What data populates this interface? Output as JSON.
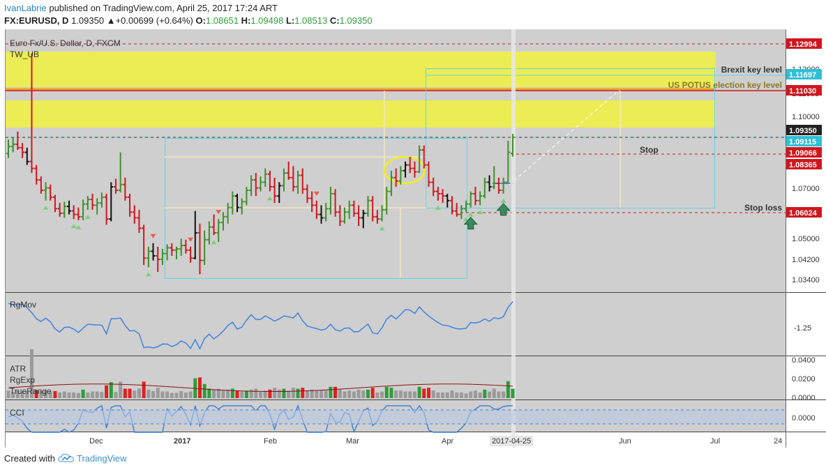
{
  "header": {
    "author": "IvanLabrie",
    "published": "published on TradingView.com, April 25, 2017 17:24 ART",
    "symbol_line_prefix": "FX:EURUSD, D",
    "last_price": "1.09350",
    "change_arrow": "▲",
    "change": "+0.00699 (+0.64%)",
    "o_label": "O:",
    "o_value": "1.08651",
    "h_label": "H:",
    "h_value": "1.09498",
    "l_label": "L:",
    "l_value": "1.08513",
    "c_label": "C:",
    "c_value": "1.09350"
  },
  "footer": {
    "created_with": "Created with",
    "brand": "TradingView",
    "logo_icon": "tradingview-cloud-icon"
  },
  "colors": {
    "panel_bg": "#cfcfcf",
    "bull": "#3f8f2c",
    "bear": "#d0161e",
    "neutral": "#111111",
    "zone_yellow": "#ecec54",
    "cyan": "#5fd6e8",
    "line_blue": "#3f83e0",
    "red_level": "#d0161e",
    "dark_price_tag": "#222222",
    "cyan_price_tag": "#2fbfd6"
  },
  "chart_data": {
    "type": "candlestick",
    "symbol_title": "Euro Fx/U.S. Dollar, D, FXCM",
    "indicator_label": "TW_UB",
    "price_axis_ticks": [
      "1.12000",
      "1.11000",
      "1.10000",
      "1.07000",
      "1.05000",
      "1.04200",
      "1.03400"
    ],
    "price_tags": [
      {
        "value": "1.12994",
        "style": "red"
      },
      {
        "value": "1.11697",
        "style": "cyan"
      },
      {
        "value": "1.11030",
        "style": "red"
      },
      {
        "value": "1.09350",
        "style": "dark"
      },
      {
        "value": "1.09115",
        "style": "cyan"
      },
      {
        "value": "1.09066",
        "style": "red"
      },
      {
        "value": "1.08365",
        "style": "red"
      },
      {
        "value": "1.06024",
        "style": "red"
      }
    ],
    "annotations": {
      "brexit": "Brexit key level",
      "potus": "US POTUS election key level",
      "stop": "Stop",
      "stop_loss": "Stop loss"
    },
    "time_axis": [
      "Dec",
      "2017",
      "Feb",
      "Mar",
      "Apr",
      "2017-04-25",
      "Jun",
      "Jul",
      "24"
    ],
    "ohlc": [
      [
        1.0865,
        1.0925,
        1.0845,
        1.0895
      ],
      [
        1.0895,
        1.0935,
        1.087,
        1.0905
      ],
      [
        1.0905,
        1.096,
        1.088,
        1.089
      ],
      [
        1.089,
        1.091,
        1.0845,
        1.087
      ],
      [
        1.087,
        1.089,
        1.0815,
        1.083
      ],
      [
        1.083,
        1.13,
        1.078,
        1.08
      ],
      [
        1.08,
        1.0815,
        1.073,
        1.075
      ],
      [
        1.075,
        1.0765,
        1.069,
        1.0705
      ],
      [
        1.0705,
        1.074,
        1.066,
        1.0715
      ],
      [
        1.0715,
        1.073,
        1.066,
        1.0675
      ],
      [
        1.0675,
        1.0685,
        1.061,
        1.0625
      ],
      [
        1.0625,
        1.065,
        1.059,
        1.0605
      ],
      [
        1.0605,
        1.0655,
        1.0585,
        1.0635
      ],
      [
        1.0635,
        1.066,
        1.06,
        1.0615
      ],
      [
        1.0615,
        1.064,
        1.058,
        1.06
      ],
      [
        1.06,
        1.063,
        1.0575,
        1.059
      ],
      [
        1.059,
        1.0665,
        1.0575,
        1.0645
      ],
      [
        1.0645,
        1.068,
        1.062,
        1.0665
      ],
      [
        1.0665,
        1.069,
        1.062,
        1.064
      ],
      [
        1.064,
        1.067,
        1.06,
        1.065
      ],
      [
        1.065,
        1.0695,
        1.063,
        1.0675
      ],
      [
        1.0675,
        1.069,
        1.0555,
        1.058
      ],
      [
        1.058,
        1.074,
        1.057,
        1.072
      ],
      [
        1.072,
        1.0755,
        1.069,
        1.0705
      ],
      [
        1.0705,
        1.087,
        1.0695,
        1.073
      ],
      [
        1.073,
        1.076,
        1.066,
        1.0675
      ],
      [
        1.0675,
        1.069,
        1.059,
        1.061
      ],
      [
        1.061,
        1.064,
        1.056,
        1.0585
      ],
      [
        1.0585,
        1.062,
        1.052,
        1.054
      ],
      [
        1.054,
        1.0555,
        1.038,
        1.041
      ],
      [
        1.041,
        1.046,
        1.037,
        1.044
      ],
      [
        1.044,
        1.0475,
        1.04,
        1.042
      ],
      [
        1.042,
        1.046,
        1.035,
        1.0405
      ],
      [
        1.0405,
        1.045,
        1.038,
        1.043
      ],
      [
        1.043,
        1.047,
        1.04,
        1.0455
      ],
      [
        1.0455,
        1.0475,
        1.042,
        1.0445
      ],
      [
        1.0445,
        1.046,
        1.0405,
        1.045
      ],
      [
        1.045,
        1.0495,
        1.042,
        1.0465
      ],
      [
        1.0465,
        1.049,
        1.043,
        1.0445
      ],
      [
        1.0445,
        1.046,
        1.039,
        1.041
      ],
      [
        1.041,
        1.0615,
        1.0405,
        1.052
      ],
      [
        1.052,
        1.056,
        1.034,
        1.04
      ],
      [
        1.04,
        1.053,
        1.038,
        1.049
      ],
      [
        1.049,
        1.057,
        1.047,
        1.0545
      ],
      [
        1.0545,
        1.06,
        1.051,
        1.052
      ],
      [
        1.052,
        1.058,
        1.048,
        1.0565
      ],
      [
        1.0565,
        1.061,
        1.053,
        1.059
      ],
      [
        1.059,
        1.065,
        1.056,
        1.063
      ],
      [
        1.063,
        1.07,
        1.06,
        1.068
      ],
      [
        1.068,
        1.069,
        1.061,
        1.063
      ],
      [
        1.063,
        1.067,
        1.06,
        1.0655
      ],
      [
        1.0655,
        1.072,
        1.064,
        1.0705
      ],
      [
        1.0705,
        1.077,
        1.068,
        1.075
      ],
      [
        1.075,
        1.078,
        1.068,
        1.0715
      ],
      [
        1.0715,
        1.0765,
        1.07,
        1.074
      ],
      [
        1.074,
        1.08,
        1.072,
        1.0775
      ],
      [
        1.0775,
        1.079,
        1.07,
        1.072
      ],
      [
        1.072,
        1.076,
        1.065,
        1.068
      ],
      [
        1.068,
        1.074,
        1.065,
        1.0725
      ],
      [
        1.0725,
        1.08,
        1.07,
        1.078
      ],
      [
        1.078,
        1.083,
        1.075,
        1.076
      ],
      [
        1.076,
        1.081,
        1.07,
        1.072
      ],
      [
        1.072,
        1.079,
        1.069,
        1.077
      ],
      [
        1.077,
        1.08,
        1.069,
        1.071
      ],
      [
        1.071,
        1.073,
        1.065,
        1.067
      ],
      [
        1.067,
        1.07,
        1.061,
        1.064
      ],
      [
        1.064,
        1.066,
        1.058,
        1.06
      ],
      [
        1.06,
        1.064,
        1.056,
        1.0585
      ],
      [
        1.0585,
        1.065,
        1.057,
        1.0625
      ],
      [
        1.0625,
        1.072,
        1.06,
        1.069
      ],
      [
        1.069,
        1.071,
        1.059,
        1.061
      ],
      [
        1.061,
        1.064,
        1.055,
        1.057
      ],
      [
        1.057,
        1.063,
        1.056,
        1.061
      ],
      [
        1.061,
        1.066,
        1.058,
        1.064
      ],
      [
        1.064,
        1.066,
        1.059,
        1.0605
      ],
      [
        1.0605,
        1.064,
        1.055,
        1.0585
      ],
      [
        1.0585,
        1.062,
        1.054,
        1.0605
      ],
      [
        1.0605,
        1.068,
        1.059,
        1.066
      ],
      [
        1.066,
        1.068,
        1.057,
        1.059
      ],
      [
        1.059,
        1.062,
        1.056,
        1.058
      ],
      [
        1.058,
        1.064,
        1.057,
        1.062
      ],
      [
        1.062,
        1.072,
        1.06,
        1.07
      ],
      [
        1.07,
        1.079,
        1.068,
        1.076
      ],
      [
        1.076,
        1.08,
        1.072,
        1.0745
      ],
      [
        1.0745,
        1.081,
        1.073,
        1.079
      ],
      [
        1.079,
        1.083,
        1.076,
        1.0815
      ],
      [
        1.0815,
        1.085,
        1.078,
        1.08
      ],
      [
        1.08,
        1.083,
        1.076,
        1.0785
      ],
      [
        1.0785,
        1.09,
        1.078,
        1.088
      ],
      [
        1.088,
        1.09,
        1.08,
        1.0815
      ],
      [
        1.0815,
        1.083,
        1.072,
        1.074
      ],
      [
        1.074,
        1.076,
        1.068,
        1.07
      ],
      [
        1.07,
        1.072,
        1.066,
        1.069
      ],
      [
        1.069,
        1.071,
        1.065,
        1.068
      ],
      [
        1.068,
        1.069,
        1.063,
        1.066
      ],
      [
        1.066,
        1.068,
        1.06,
        1.0615
      ],
      [
        1.0615,
        1.065,
        1.059,
        1.06
      ],
      [
        1.06,
        1.064,
        1.058,
        1.0625
      ],
      [
        1.0625,
        1.066,
        1.061,
        1.0645
      ],
      [
        1.0645,
        1.07,
        1.063,
        1.069
      ],
      [
        1.069,
        1.072,
        1.064,
        1.066
      ],
      [
        1.066,
        1.07,
        1.064,
        1.068
      ],
      [
        1.068,
        1.076,
        1.067,
        1.074
      ],
      [
        1.074,
        1.077,
        1.07,
        1.072
      ],
      [
        1.072,
        1.081,
        1.071,
        1.0735
      ],
      [
        1.0735,
        1.076,
        1.069,
        1.0705
      ],
      [
        1.0705,
        1.076,
        1.069,
        1.074
      ],
      [
        1.074,
        1.092,
        1.074,
        1.087
      ],
      [
        1.0865,
        1.095,
        1.0851,
        1.0935
      ]
    ],
    "signals": {
      "up_small": [
        8,
        14,
        15,
        17,
        30,
        44,
        56,
        80,
        92,
        98,
        99,
        101,
        106
      ],
      "down_small": [
        31,
        39,
        45,
        66
      ],
      "big_up_arrows": [
        99,
        106
      ]
    },
    "indicators": {
      "rgmov_label": "RgMov",
      "rgmov_tick": "-1.25",
      "atr_label": "ATR",
      "rgexp_label": "RgExp",
      "truerange_label": "TrueRange",
      "atr_ticks": [
        "0.0400",
        "0.0200",
        "0.0000"
      ],
      "cci_label": "CCI",
      "cci_tick": "0.0000"
    }
  }
}
